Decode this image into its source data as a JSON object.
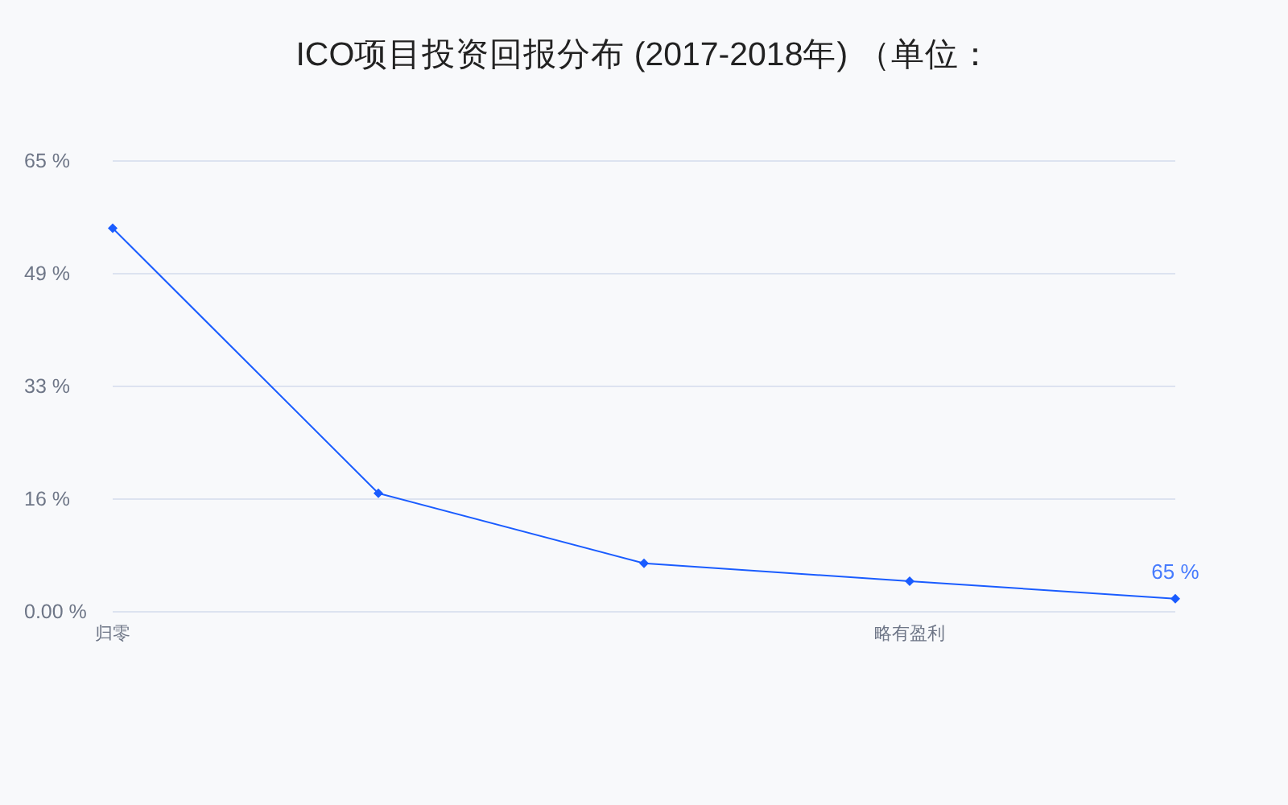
{
  "chart_data": {
    "type": "line",
    "title": "ICO项目投资回报分布 (2017-2018年) （单位：",
    "categories": [
      "归零",
      null,
      null,
      "略有盈利",
      null
    ],
    "series": [
      {
        "color": "#1a5cff",
        "values": [
          55.3,
          17.1,
          7.0,
          4.4,
          1.9
        ]
      }
    ],
    "annotations": [
      {
        "text": "65 %",
        "y": 1.9
      }
    ],
    "ylim": [
      0,
      65
    ],
    "yticks": [
      {
        "value": 0,
        "label": "0.00 %"
      },
      {
        "value": 16.25,
        "label": "16 %"
      },
      {
        "value": 32.5,
        "label": "33 %"
      },
      {
        "value": 48.75,
        "label": "49 %"
      },
      {
        "value": 65,
        "label": "65 %"
      }
    ],
    "grid": "y",
    "marker": "diamond",
    "line_style": "solid"
  }
}
